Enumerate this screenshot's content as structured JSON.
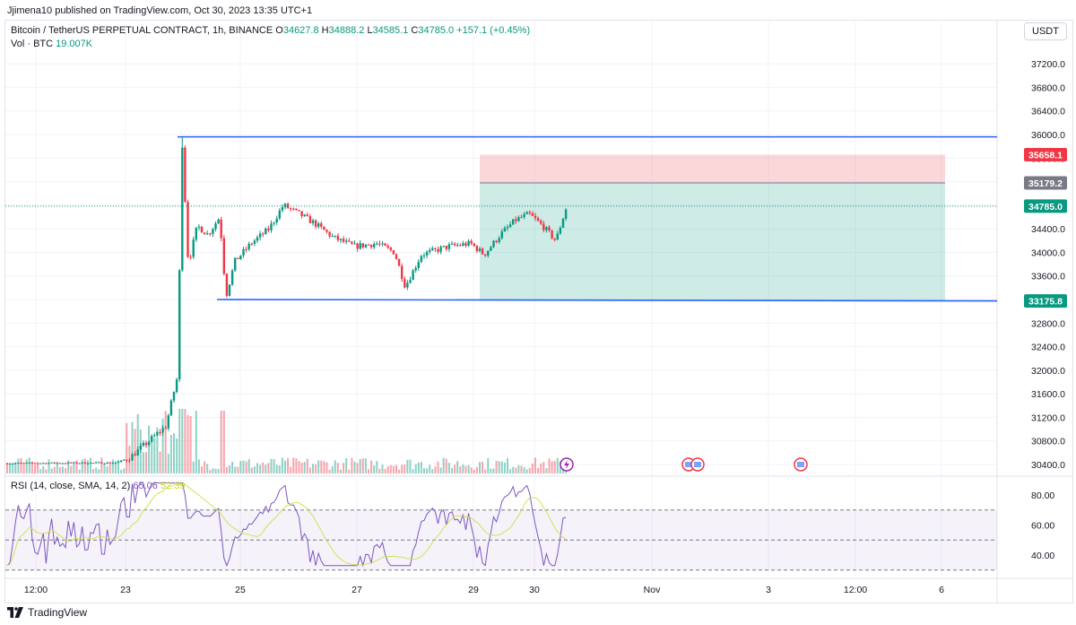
{
  "publisher": "Jjimena10 published on TradingView.com, Oct 30, 2023 13:35 UTC+1",
  "legend": {
    "symbol": "Bitcoin / TetherUS PERPETUAL CONTRACT, 1h, BINANCE",
    "o_label": "O",
    "o": "34627.8",
    "h_label": "H",
    "h": "34888.2",
    "l_label": "L",
    "l": "34585.1",
    "c_label": "C",
    "c": "34785.0",
    "change": "+157.1 (+0.45%)"
  },
  "volume": {
    "label": "Vol · BTC",
    "value": "19.007K"
  },
  "currency_button": "USDT",
  "rsi": {
    "label": "RSI (14, close, SMA, 14, 2)",
    "value": "65.06",
    "sma": "52.39"
  },
  "footer": "TradingView",
  "colors": {
    "up": "#089981",
    "down": "#f23645",
    "line": "#2962ff",
    "rsi": "#7e57c2",
    "rsi_sma": "#d4e157"
  },
  "chart_data": {
    "type": "candlestick",
    "y_axis_ticks": [
      "37200.0",
      "36800.0",
      "36400.0",
      "36000.0",
      "35600.0",
      "35200.0",
      "34800.0",
      "34400.0",
      "34000.0",
      "33600.0",
      "33200.0",
      "32800.0",
      "32400.0",
      "32000.0",
      "31600.0",
      "31200.0",
      "30800.0",
      "30400.0"
    ],
    "ylim": [
      30300,
      37500
    ],
    "x_axis_ticks": [
      "12:00",
      "23",
      "25",
      "27",
      "29",
      "30",
      "Nov",
      "3",
      "12:00",
      "6"
    ],
    "price_tags": [
      {
        "value": "35658.1",
        "kind": "stop"
      },
      {
        "value": "35179.2",
        "kind": "entry"
      },
      {
        "value": "34785.0",
        "kind": "last"
      },
      {
        "value": "33175.8",
        "kind": "line"
      }
    ],
    "horizontal_lines": [
      35960,
      33175.8
    ],
    "position": {
      "type": "long",
      "entry": 35179.2,
      "stop": 35658.1,
      "target": 33175.8
    },
    "rsi_axis_ticks": [
      "80.00",
      "60.00",
      "40.00"
    ],
    "rsi_bands": [
      70,
      50,
      30
    ],
    "rsi_last": 65.06,
    "rsi_sma_last": 52.39
  }
}
